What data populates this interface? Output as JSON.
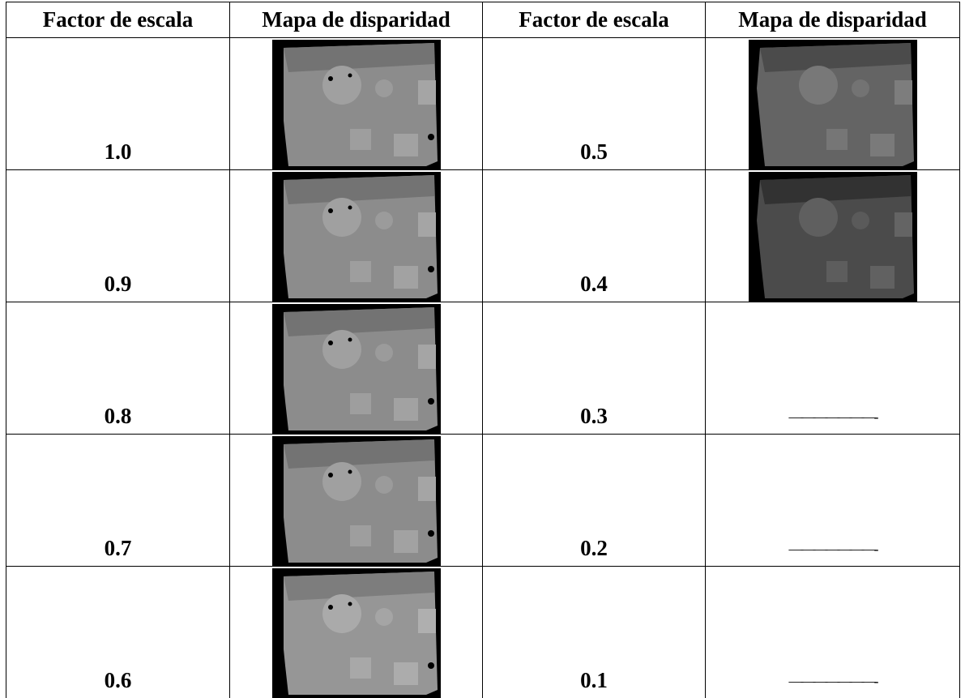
{
  "table": {
    "header": [
      "Factor de escala",
      "Mapa de disparidad",
      "Factor de escala",
      "Mapa de disparidad"
    ],
    "rows": [
      {
        "left_factor": "1.0",
        "right_factor": "0.5"
      },
      {
        "left_factor": "0.9",
        "right_factor": "0.4"
      },
      {
        "left_factor": "0.8",
        "right_factor": "0.3",
        "right_map": "———————-"
      },
      {
        "left_factor": "0.7",
        "right_factor": "0.2",
        "right_map": "———————-"
      },
      {
        "left_factor": "0.6",
        "right_factor": "0.1",
        "right_map": "———————-"
      }
    ]
  }
}
